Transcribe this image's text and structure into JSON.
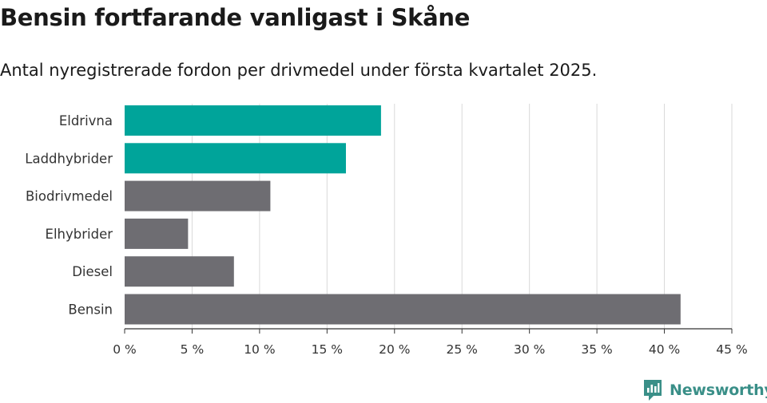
{
  "title": "Bensin fortfarande vanligast i Skåne",
  "subtitle": "Antal nyregistrerade fordon per drivmedel under första kvartalet 2025.",
  "logo_text": "Newsworthy",
  "chart_data": {
    "type": "bar",
    "orientation": "horizontal",
    "categories": [
      "Eldrivna",
      "Laddhybrider",
      "Biodrivmedel",
      "Elhybrider",
      "Diesel",
      "Bensin"
    ],
    "values": [
      19.0,
      16.4,
      10.8,
      4.7,
      8.1,
      41.2
    ],
    "bar_colors": [
      "#00a49a",
      "#00a49a",
      "#6e6d72",
      "#6e6d72",
      "#6e6d72",
      "#6e6d72"
    ],
    "xlim": [
      0,
      45
    ],
    "xticks": [
      0,
      5,
      10,
      15,
      20,
      25,
      30,
      35,
      40,
      45
    ],
    "xtick_labels": [
      "0 %",
      "5 %",
      "10 %",
      "15 %",
      "20 %",
      "25 %",
      "30 %",
      "35 %",
      "40 %",
      "45 %"
    ],
    "grid": true,
    "gridline_color": "#d9d9d9",
    "axis_color": "#333333",
    "legend": "none"
  }
}
